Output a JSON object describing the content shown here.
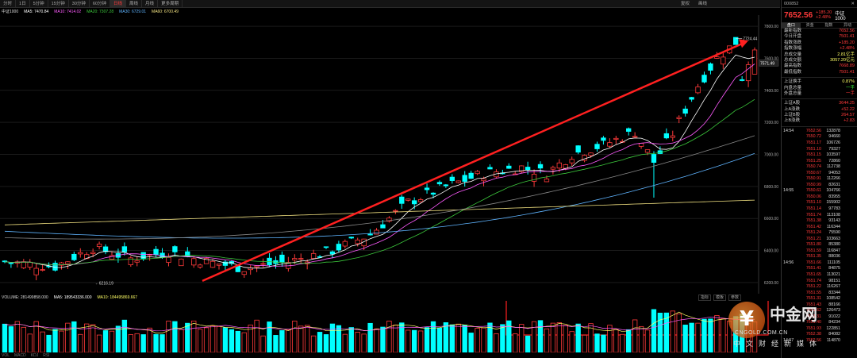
{
  "toolbar": {
    "periods": [
      "分时",
      "1日",
      "5分钟",
      "15分钟",
      "30分钟",
      "60分钟",
      "日线",
      "周线",
      "月线",
      "更多周期"
    ],
    "active": "日线",
    "right_btns": [
      "复权",
      "画线"
    ],
    "sidebar_top": "000852",
    "mini_icons": [
      "设置",
      "关闭"
    ]
  },
  "chart_title": "中证1000",
  "ma_labels": {
    "name": "中证1000",
    "ma5": "MA5: 7470.84",
    "ma10": "MA10: 7414.02",
    "ma20": "MA20: 7307.28",
    "ma30": "MA30: 6729.01",
    "ma60": "MA60: 6700.49"
  },
  "ma_colors": {
    "ma5": "#ffffff",
    "ma10": "#ff5bff",
    "ma20": "#3cc83c",
    "ma30": "#5fb4ff",
    "ma60": "#f0e080"
  },
  "annotations": {
    "max_label": "7724.44",
    "min_label": "6216.19",
    "price_box": "7571.49"
  },
  "y_axis_ticks": [
    "7800.00",
    "7600.00",
    "7400.00",
    "7200.00",
    "7000.00",
    "6800.00",
    "6600.00",
    "6400.00",
    "6200.00"
  ],
  "volume": {
    "label": "VOLUME: 281499858.000",
    "vma5": "MA5: 189543336.000",
    "vma10": "MA10: 184495869.667",
    "buttons": [
      "指标",
      "模板",
      "参数"
    ]
  },
  "bottom_row": [
    "VOL",
    "MACD",
    "KDJ",
    "RSI"
  ],
  "sidebar": {
    "code": "000852",
    "name": "中证1000",
    "price": "7652.56",
    "change": "+185.20",
    "change_pct": "+2.48%",
    "tabs": [
      "盘口",
      "资金",
      "指数",
      "异动"
    ],
    "quote": [
      {
        "k": "最新指数",
        "v": "7652.56",
        "c": "#ff3a3a"
      },
      {
        "k": "今日开盘",
        "v": "7501.41",
        "c": "#ff3a3a"
      },
      {
        "k": "指数涨跌",
        "v": "+185.20",
        "c": "#ff3a3a"
      },
      {
        "k": "指数涨幅",
        "v": "+2.48%",
        "c": "#ff3a3a"
      },
      {
        "k": "总成交量",
        "v": "2.81亿手",
        "c": "#ffff66"
      },
      {
        "k": "总成交额",
        "v": "3057.20亿元",
        "c": "#ffff66"
      },
      {
        "k": "最高指数",
        "v": "7668.89",
        "c": "#ff3a3a"
      },
      {
        "k": "最低指数",
        "v": "7501.41",
        "c": "#ff3a3a"
      }
    ],
    "quote2": [
      {
        "k": "上证换手",
        "v": "0.87%",
        "c": "#ffff66"
      },
      {
        "k": "内盘总量",
        "v": "一手",
        "c": "#3cff3c"
      },
      {
        "k": "外盘总量",
        "v": "一手",
        "c": "#ff3a3a"
      }
    ],
    "quote3": [
      {
        "k": "上证A股",
        "v": "3644.25",
        "c": "#ff3a3a"
      },
      {
        "k": "上A涨跌",
        "v": "+52.22",
        "c": "#ff3a3a"
      },
      {
        "k": "上证B股",
        "v": "264.57",
        "c": "#ff3a3a"
      },
      {
        "k": "上B涨跌",
        "v": "+2.83",
        "c": "#ff3a3a"
      }
    ],
    "ticks": [
      {
        "t": "14:54",
        "p": "7652.56",
        "v": "132878"
      },
      {
        "t": "",
        "p": "7650.72",
        "v": "94660"
      },
      {
        "t": "",
        "p": "7651.17",
        "v": "106726"
      },
      {
        "t": "",
        "p": "7651.10",
        "v": "79327"
      },
      {
        "t": "",
        "p": "7651.15",
        "v": "103597"
      },
      {
        "t": "",
        "p": "7651.25",
        "v": "72860"
      },
      {
        "t": "",
        "p": "7650.74",
        "v": "112738"
      },
      {
        "t": "",
        "p": "7650.67",
        "v": "94053"
      },
      {
        "t": "",
        "p": "7650.91",
        "v": "112266"
      },
      {
        "t": "",
        "p": "7650.99",
        "v": "82631"
      },
      {
        "t": "14:55",
        "p": "7650.61",
        "v": "104766"
      },
      {
        "t": "",
        "p": "7650.06",
        "v": "83955"
      },
      {
        "t": "",
        "p": "7651.10",
        "v": "155902"
      },
      {
        "t": "",
        "p": "7651.14",
        "v": "97783"
      },
      {
        "t": "",
        "p": "7651.74",
        "v": "113108"
      },
      {
        "t": "",
        "p": "7651.38",
        "v": "93143"
      },
      {
        "t": "",
        "p": "7651.42",
        "v": "116344"
      },
      {
        "t": "",
        "p": "7651.24",
        "v": "75590"
      },
      {
        "t": "",
        "p": "7651.21",
        "v": "103663"
      },
      {
        "t": "",
        "p": "7651.80",
        "v": "85380"
      },
      {
        "t": "",
        "p": "7651.59",
        "v": "116847"
      },
      {
        "t": "",
        "p": "7651.35",
        "v": "88036"
      },
      {
        "t": "14:56",
        "p": "7651.66",
        "v": "111105"
      },
      {
        "t": "",
        "p": "7651.41",
        "v": "84875"
      },
      {
        "t": "",
        "p": "7651.65",
        "v": "113021"
      },
      {
        "t": "",
        "p": "7651.74",
        "v": "98151"
      },
      {
        "t": "",
        "p": "7651.22",
        "v": "116267"
      },
      {
        "t": "",
        "p": "7651.55",
        "v": "83344"
      },
      {
        "t": "",
        "p": "7651.31",
        "v": "108542"
      },
      {
        "t": "",
        "p": "7651.43",
        "v": "88166"
      },
      {
        "t": "",
        "p": "7651.62",
        "v": "126473"
      },
      {
        "t": "",
        "p": "7651.31",
        "v": "91022"
      },
      {
        "t": "",
        "p": "7651.40",
        "v": "84234"
      },
      {
        "t": "",
        "p": "7651.93",
        "v": "122851"
      },
      {
        "t": "",
        "p": "7652.38",
        "v": "84082"
      },
      {
        "t": "14:57",
        "p": "7652.56",
        "v": "114870"
      }
    ]
  },
  "watermark": {
    "logo": "¥",
    "brand": "中金网",
    "url": "CNGOLD.COM.CN",
    "tagline": "中文财经新媒体"
  }
}
